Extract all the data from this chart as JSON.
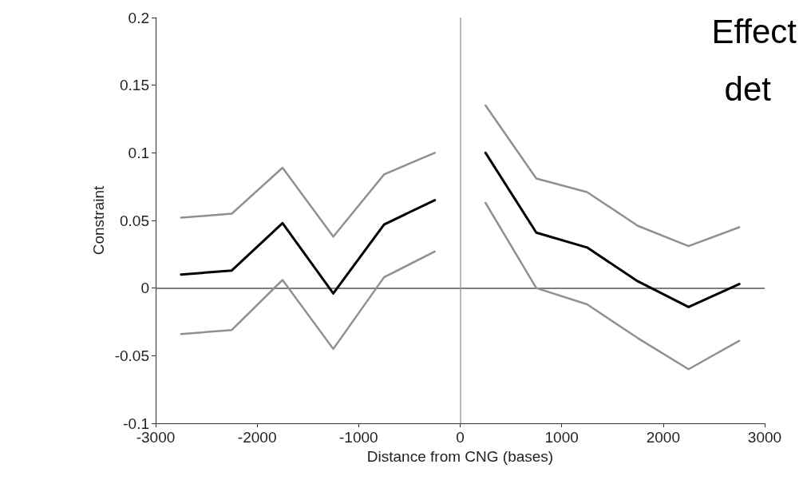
{
  "chart_data": {
    "type": "line",
    "xlabel": "Distance from CNG (bases)",
    "ylabel": "Constraint",
    "annotations": [
      "Effect",
      "det"
    ],
    "x": [
      -2750,
      -2250,
      -1750,
      -1250,
      -750,
      -250,
      0,
      250,
      750,
      1250,
      1750,
      2250,
      2750
    ],
    "series": [
      {
        "color": "#909090",
        "values": [
          0.052,
          0.055,
          0.089,
          0.038,
          0.084,
          0.1,
          null,
          0.135,
          0.081,
          0.071,
          0.046,
          0.031,
          0.045
        ]
      },
      {
        "color": "#909090",
        "values": [
          -0.034,
          -0.031,
          0.006,
          -0.045,
          0.008,
          0.027,
          null,
          0.063,
          0.0,
          -0.012,
          -0.037,
          -0.06,
          -0.039
        ]
      },
      {
        "color": "#000000",
        "values": [
          0.01,
          0.013,
          0.048,
          -0.004,
          0.047,
          0.065,
          null,
          0.1,
          0.041,
          0.03,
          0.005,
          -0.014,
          0.003
        ]
      }
    ],
    "xlim": [
      -3000,
      3000
    ],
    "xticks": [
      -3000,
      -2000,
      -1000,
      0,
      1000,
      2000,
      3000
    ],
    "ylim": [
      -0.1,
      0.2
    ],
    "yticks": [
      -0.1,
      -0.05,
      0,
      0.05,
      0.1,
      0.15,
      0.2
    ],
    "ref_lines": [
      {
        "axis": "y",
        "value": 0,
        "color": "#555555"
      },
      {
        "axis": "x",
        "value": 0,
        "color": "#a0a0a0"
      }
    ],
    "marker": "none",
    "line_style": "solid"
  }
}
